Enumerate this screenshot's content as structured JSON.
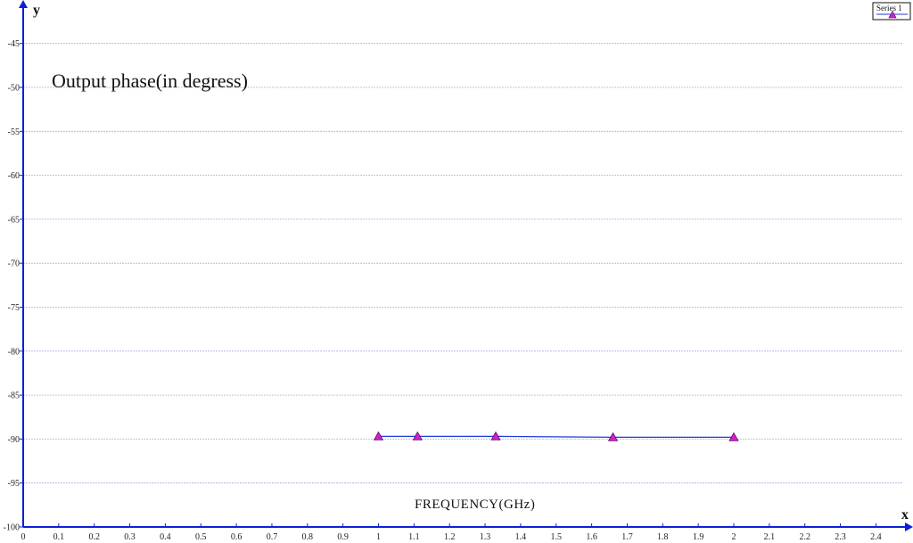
{
  "chart_data": {
    "type": "line",
    "title": "Output phase(in degress)",
    "xlabel": "FREQUENCY(GHz)",
    "x_axis_letter": "x",
    "y_axis_letter": "y",
    "xlim": [
      0,
      2.5
    ],
    "ylim": [
      -100,
      -41
    ],
    "x_ticks": [
      0,
      0.1,
      0.2,
      0.3,
      0.4,
      0.5,
      0.6,
      0.7,
      0.8,
      0.9,
      1,
      1.1,
      1.2,
      1.3,
      1.4,
      1.5,
      1.6,
      1.7,
      1.8,
      1.9,
      2,
      2.1,
      2.2,
      2.3,
      2.4
    ],
    "y_ticks": [
      -100,
      -95,
      -90,
      -85,
      -80,
      -75,
      -70,
      -65,
      -60,
      -55,
      -50,
      -45
    ],
    "grid": true,
    "legend_position": "top-right",
    "series": [
      {
        "name": "Series 1",
        "color": "#1e3adb",
        "marker_color": "#cc22cc",
        "x": [
          1,
          1.11,
          1.33,
          1.66,
          2
        ],
        "y": [
          -89.7,
          -89.7,
          -89.7,
          -89.8,
          -89.8
        ]
      }
    ]
  },
  "colors": {
    "axis": "#0b1fd6",
    "grid": "#a8b0e0"
  }
}
